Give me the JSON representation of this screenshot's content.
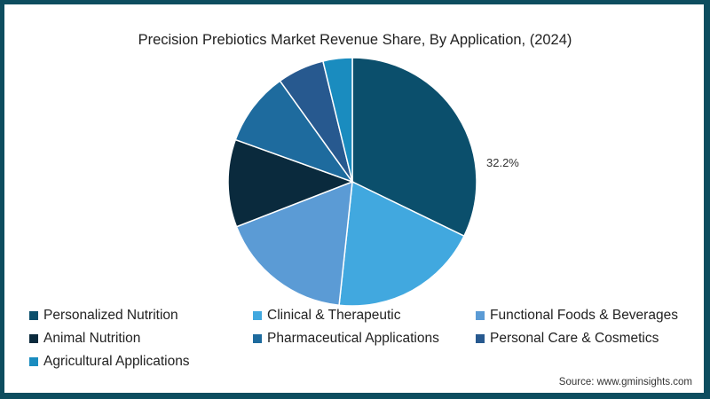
{
  "title": "Precision Prebiotics Market Revenue Share, By Application, (2024)",
  "source": "Source: www.gminsights.com",
  "label_text": "32.2%",
  "chart_data": {
    "type": "pie",
    "title": "Precision Prebiotics Market Revenue Share, By Application, (2024)",
    "categories": [
      "Personalized Nutrition",
      "Clinical & Therapeutic",
      "Functional Foods & Beverages",
      "Animal Nutrition",
      "Pharmaceutical Applications",
      "Personal Care & Cosmetics",
      "Agricultural Applications"
    ],
    "values": [
      32.2,
      19.5,
      17.4,
      11.4,
      9.6,
      6.1,
      3.8
    ],
    "colors": [
      "#0b4f6c",
      "#41a8df",
      "#5b9bd5",
      "#0a2a3d",
      "#1e6b9e",
      "#27598f",
      "#1a8cbf"
    ],
    "labeled": {
      "Personalized Nutrition": "32.2%"
    },
    "start_angle": "12 o'clock, clockwise",
    "legend_position": "bottom"
  },
  "legend": [
    {
      "label": "Personalized Nutrition",
      "color": "#0b4f6c"
    },
    {
      "label": "Clinical & Therapeutic",
      "color": "#41a8df"
    },
    {
      "label": "Functional Foods & Beverages",
      "color": "#5b9bd5"
    },
    {
      "label": "Animal Nutrition",
      "color": "#0a2a3d"
    },
    {
      "label": "Pharmaceutical Applications",
      "color": "#1e6b9e"
    },
    {
      "label": "Personal Care & Cosmetics",
      "color": "#27598f"
    },
    {
      "label": "Agricultural Applications",
      "color": "#1a8cbf"
    }
  ]
}
